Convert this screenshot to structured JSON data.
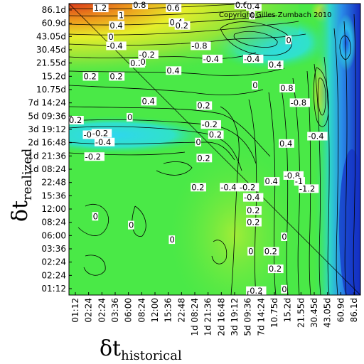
{
  "chart_data": {
    "type": "heatmap",
    "title": "",
    "copyright": "Copyright Gilles Zumbach 2010",
    "xlabel": {
      "main": "δt",
      "sub": "historical"
    },
    "ylabel": {
      "main": "δt",
      "sub": "realized"
    },
    "x_ticks": [
      "01:12",
      "02:24",
      "02:24",
      "03:36",
      "06:00",
      "08:24",
      "12:00",
      "15:36",
      "22:48",
      "1d 08:24",
      "1d 21:36",
      "2d 16:48",
      "3d 19:12",
      "5d 09:36",
      "7d 14:24",
      "10.75d",
      "15.2d",
      "21.55d",
      "30.45d",
      "43.05d",
      "60.9d",
      "86.1d"
    ],
    "y_ticks": [
      "86.1d",
      "60.9d",
      "43.05d",
      "30.45d",
      "21.55d",
      "15.2d",
      "10.75d",
      "7d 14:24",
      "5d 09:36",
      "3d 19:12",
      "2d 16:48",
      "1d 21:36",
      "1d 08:24",
      "22:48",
      "15:36",
      "12:00",
      "08:24",
      "06:00",
      "03:36",
      "02:24",
      "02:24",
      "01:12"
    ],
    "color_scale": [
      "#1428c8",
      "#2a7ae6",
      "#2fd2ee",
      "#2ee8a8",
      "#3ee84a",
      "#8ee838",
      "#d6f030",
      "#f0c818",
      "#e87818",
      "#e02818"
    ],
    "contour_labels": [
      {
        "text": "1.2",
        "lx": 0.085,
        "ly": 0.985
      },
      {
        "text": "1",
        "lx": 0.17,
        "ly": 0.96
      },
      {
        "text": "0.8",
        "lx": 0.22,
        "ly": 0.995
      },
      {
        "text": "0.4",
        "lx": 0.14,
        "ly": 0.925
      },
      {
        "text": "0.6",
        "lx": 0.335,
        "ly": 0.985
      },
      {
        "text": "0.4",
        "lx": 0.345,
        "ly": 0.935
      },
      {
        "text": "0.2",
        "lx": 0.365,
        "ly": 0.925
      },
      {
        "text": "0",
        "lx": 0.135,
        "ly": 0.885
      },
      {
        "text": "-0.4",
        "lx": 0.13,
        "ly": 0.855
      },
      {
        "text": "-0.8",
        "lx": 0.42,
        "ly": 0.855
      },
      {
        "text": "-0.2",
        "lx": 0.24,
        "ly": 0.825
      },
      {
        "text": "-0.4",
        "lx": 0.46,
        "ly": 0.81
      },
      {
        "text": "0.6",
        "lx": 0.57,
        "ly": 0.995
      },
      {
        "text": "0.4",
        "lx": 0.61,
        "ly": 0.99
      },
      {
        "text": "0",
        "lx": 0.62,
        "ly": 0.96
      },
      {
        "text": "0.2",
        "lx": 0.21,
        "ly": 0.795
      },
      {
        "text": "0",
        "lx": 0.245,
        "ly": 0.8
      },
      {
        "text": "0.2",
        "lx": 0.05,
        "ly": 0.75
      },
      {
        "text": "0.2",
        "lx": 0.14,
        "ly": 0.75
      },
      {
        "text": "0.4",
        "lx": 0.335,
        "ly": 0.77
      },
      {
        "text": "0.4",
        "lx": 0.25,
        "ly": 0.665
      },
      {
        "text": "0",
        "lx": 0.2,
        "ly": 0.61
      },
      {
        "text": "0.2",
        "lx": 0.0,
        "ly": 0.6
      },
      {
        "text": "-0.2",
        "lx": 0.05,
        "ly": 0.55
      },
      {
        "text": "-0.2",
        "lx": 0.08,
        "ly": 0.555
      },
      {
        "text": "-0.4",
        "lx": 0.09,
        "ly": 0.525
      },
      {
        "text": "-0.2",
        "lx": 0.055,
        "ly": 0.475
      },
      {
        "text": "0.2",
        "lx": 0.44,
        "ly": 0.65
      },
      {
        "text": "-0.2",
        "lx": 0.455,
        "ly": 0.585
      },
      {
        "text": "0.2",
        "lx": 0.48,
        "ly": 0.55
      },
      {
        "text": "0",
        "lx": 0.435,
        "ly": 0.525
      },
      {
        "text": "0.2",
        "lx": 0.44,
        "ly": 0.47
      },
      {
        "text": "0.2",
        "lx": 0.42,
        "ly": 0.37
      },
      {
        "text": "-0.4",
        "lx": 0.52,
        "ly": 0.37
      },
      {
        "text": "-0.2",
        "lx": 0.585,
        "ly": 0.37
      },
      {
        "text": "-0.4",
        "lx": 0.6,
        "ly": 0.335
      },
      {
        "text": "0.4",
        "lx": 0.672,
        "ly": 0.39
      },
      {
        "text": "0.2",
        "lx": 0.61,
        "ly": 0.29
      },
      {
        "text": "0.2",
        "lx": 0.61,
        "ly": 0.25
      },
      {
        "text": "0.4",
        "lx": 0.722,
        "ly": 0.52
      },
      {
        "text": "-0.8",
        "lx": 0.738,
        "ly": 0.41
      },
      {
        "text": "-1",
        "lx": 0.775,
        "ly": 0.39
      },
      {
        "text": "-1.2",
        "lx": 0.79,
        "ly": 0.365
      },
      {
        "text": "-0.4",
        "lx": 0.82,
        "ly": 0.545
      },
      {
        "text": "0.8",
        "lx": 0.725,
        "ly": 0.71
      },
      {
        "text": "0.4",
        "lx": 0.685,
        "ly": 0.79
      },
      {
        "text": "0",
        "lx": 0.745,
        "ly": 0.875
      },
      {
        "text": "-0.8",
        "lx": 0.76,
        "ly": 0.66
      },
      {
        "text": "0",
        "lx": 0.63,
        "ly": 0.72
      },
      {
        "text": "-0.4",
        "lx": 0.6,
        "ly": 0.81
      },
      {
        "text": "0",
        "lx": 0.73,
        "ly": 0.2
      },
      {
        "text": "0",
        "lx": 0.615,
        "ly": 0.15
      },
      {
        "text": "-0.2",
        "lx": 0.61,
        "ly": 0.015
      },
      {
        "text": "0",
        "lx": 0.73,
        "ly": 0.02
      },
      {
        "text": "0.2",
        "lx": 0.685,
        "ly": 0.09
      },
      {
        "text": "0.2",
        "lx": 0.67,
        "ly": 0.15
      },
      {
        "text": "0",
        "lx": 0.082,
        "ly": 0.27
      },
      {
        "text": "0",
        "lx": 0.205,
        "ly": 0.24
      },
      {
        "text": "0",
        "lx": 0.345,
        "ly": 0.19
      }
    ]
  }
}
